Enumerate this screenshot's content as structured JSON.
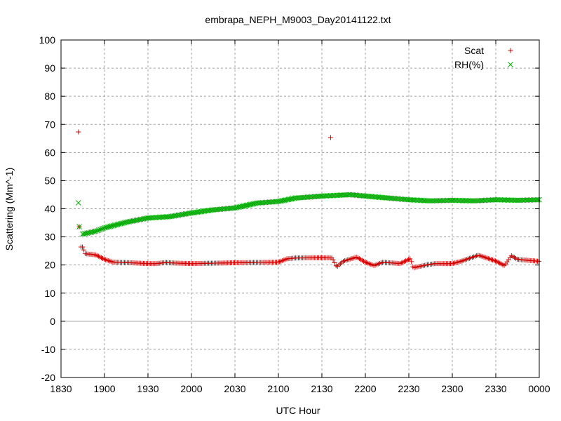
{
  "chart_data": {
    "type": "scatter",
    "title": "embrapa_NEPH_M9003_Day20141122.txt",
    "xlabel": "UTC Hour",
    "ylabel": "Scattering (Mm^-1)",
    "x_tick_labels": [
      "1830",
      "1900",
      "1930",
      "2000",
      "2030",
      "2100",
      "2130",
      "2200",
      "2230",
      "2300",
      "2330",
      "0000"
    ],
    "y_tick_labels": [
      "-20",
      "-10",
      "0",
      "10",
      "20",
      "30",
      "40",
      "50",
      "60",
      "70",
      "80",
      "90",
      "100"
    ],
    "xlim_hours": [
      18.5,
      24.0
    ],
    "ylim": [
      -20,
      100
    ],
    "grid": true,
    "legend_position": "top-right",
    "series": [
      {
        "name": "Scat",
        "marker": "plus",
        "color": "#cc0000",
        "key_points": [
          [
            18.7,
            67.3
          ],
          [
            18.71,
            33.6
          ],
          [
            18.73,
            26.4
          ],
          [
            18.75,
            26.4
          ],
          [
            18.78,
            24.0
          ],
          [
            18.9,
            23.6
          ],
          [
            19.0,
            22.0
          ],
          [
            19.1,
            21.0
          ],
          [
            19.3,
            20.8
          ],
          [
            19.5,
            20.5
          ],
          [
            19.6,
            20.5
          ],
          [
            19.7,
            20.9
          ],
          [
            19.8,
            20.7
          ],
          [
            20.0,
            20.5
          ],
          [
            20.5,
            20.8
          ],
          [
            21.0,
            21.0
          ],
          [
            21.1,
            22.2
          ],
          [
            21.2,
            22.5
          ],
          [
            21.5,
            22.6
          ],
          [
            21.62,
            22.5
          ],
          [
            21.67,
            19.3
          ],
          [
            21.75,
            21.4
          ],
          [
            21.9,
            22.8
          ],
          [
            22.0,
            21.0
          ],
          [
            22.1,
            19.8
          ],
          [
            22.2,
            21.0
          ],
          [
            22.4,
            20.5
          ],
          [
            22.52,
            22.3
          ],
          [
            22.55,
            19.0
          ],
          [
            22.7,
            20.0
          ],
          [
            22.8,
            20.5
          ],
          [
            23.0,
            20.5
          ],
          [
            23.1,
            21.3
          ],
          [
            23.3,
            23.5
          ],
          [
            23.5,
            21.4
          ],
          [
            23.6,
            19.8
          ],
          [
            23.68,
            23.3
          ],
          [
            23.75,
            22.0
          ],
          [
            24.0,
            21.3
          ]
        ],
        "outliers": [
          [
            21.6,
            65.3
          ]
        ]
      },
      {
        "name": "RH(%)",
        "marker": "cross",
        "color": "#00aa00",
        "key_points": [
          [
            18.7,
            42.1
          ],
          [
            18.71,
            33.6
          ],
          [
            18.75,
            31.0
          ],
          [
            18.9,
            32.0
          ],
          [
            19.0,
            33.2
          ],
          [
            19.25,
            35.2
          ],
          [
            19.5,
            36.7
          ],
          [
            19.75,
            37.2
          ],
          [
            20.0,
            38.5
          ],
          [
            20.25,
            39.6
          ],
          [
            20.5,
            40.3
          ],
          [
            20.75,
            42.0
          ],
          [
            21.0,
            42.6
          ],
          [
            21.2,
            43.8
          ],
          [
            21.5,
            44.5
          ],
          [
            21.83,
            45.0
          ],
          [
            22.0,
            44.5
          ],
          [
            22.5,
            43.2
          ],
          [
            22.75,
            42.8
          ],
          [
            23.0,
            43.0
          ],
          [
            23.25,
            42.8
          ],
          [
            23.5,
            43.2
          ],
          [
            23.75,
            43.0
          ],
          [
            24.0,
            43.2
          ]
        ]
      }
    ]
  }
}
